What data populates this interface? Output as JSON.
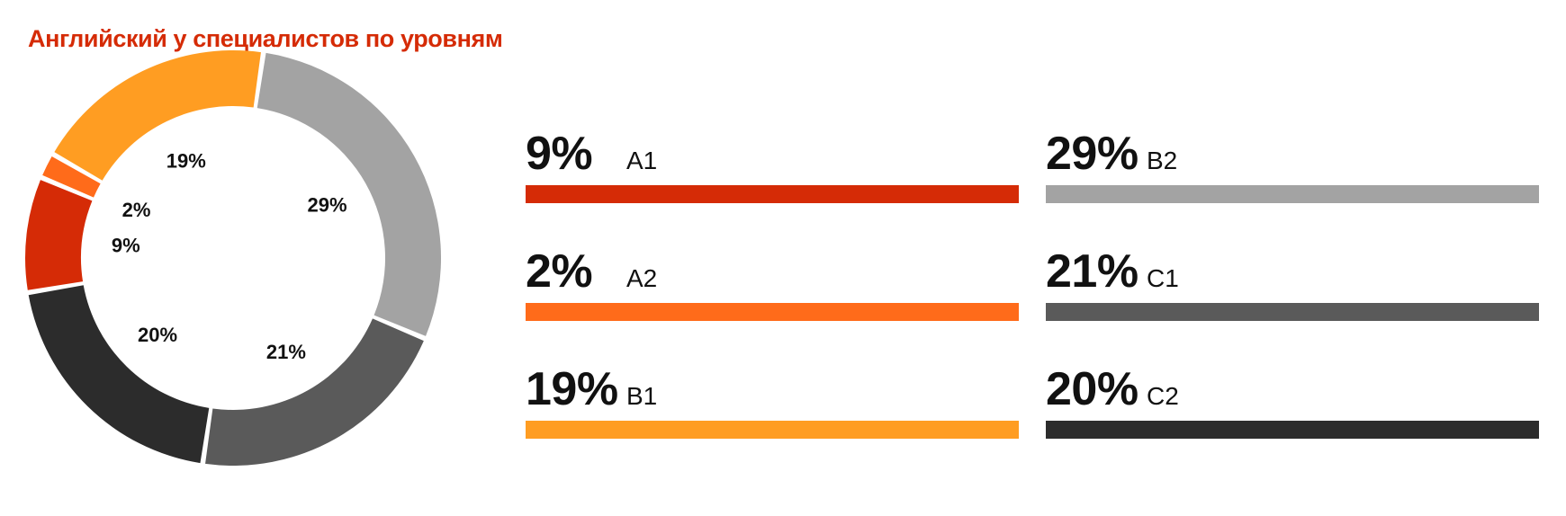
{
  "chart_data": {
    "type": "pie",
    "title": "Английский у специалистов по уровням",
    "categories": [
      "A1",
      "A2",
      "B1",
      "B2",
      "C1",
      "C2"
    ],
    "values": [
      9,
      2,
      19,
      29,
      21,
      20
    ],
    "value_labels": [
      "9%",
      "2%",
      "19%",
      "29%",
      "21%",
      "20%"
    ],
    "unit": "%",
    "colors": [
      "#d52b06",
      "#ff6b1a",
      "#ff9d22",
      "#a3a3a3",
      "#5a5a5a",
      "#2c2c2c"
    ],
    "hole": true,
    "legend_position": "right"
  }
}
